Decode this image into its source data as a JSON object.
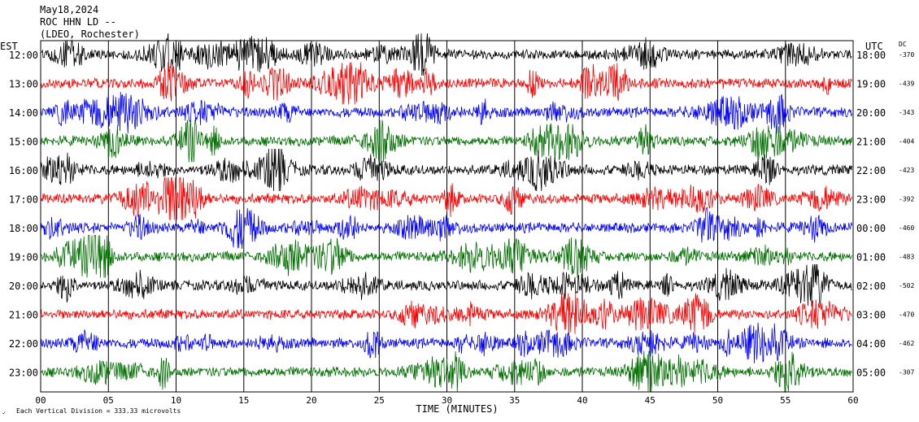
{
  "header": {
    "line1": "May18,2024",
    "line2": "ROC HHN LD --",
    "line3": "(LDEO, Rochester)"
  },
  "left_axis_title": "EST",
  "right_axis_title": "UTC",
  "dc_title": "DC",
  "footer": {
    "scale_note": "Each Vertical Division =  333.33 microvolts"
  },
  "chart_data": {
    "type": "line",
    "title": "",
    "xlabel": "TIME (MINUTES)",
    "ylabel": "",
    "xlim": [
      0,
      60
    ],
    "x_ticks": [
      "00",
      "05",
      "10",
      "15",
      "20",
      "25",
      "30",
      "35",
      "40",
      "45",
      "50",
      "55",
      "60"
    ],
    "vertical_gridlines_every_minutes": 5,
    "trace_colors": [
      "#000000",
      "#ff0000",
      "#0000ff",
      "#007000"
    ],
    "rows": [
      {
        "est": "12:00",
        "utc": "18:00",
        "dc": "-370"
      },
      {
        "est": "13:00",
        "utc": "19:00",
        "dc": "-439"
      },
      {
        "est": "14:00",
        "utc": "20:00",
        "dc": "-343"
      },
      {
        "est": "15:00",
        "utc": "21:00",
        "dc": "-404"
      },
      {
        "est": "16:00",
        "utc": "22:00",
        "dc": "-423"
      },
      {
        "est": "17:00",
        "utc": "23:00",
        "dc": "-392"
      },
      {
        "est": "18:00",
        "utc": "00:00",
        "dc": "-460"
      },
      {
        "est": "19:00",
        "utc": "01:00",
        "dc": "-483"
      },
      {
        "est": "20:00",
        "utc": "02:00",
        "dc": "-502"
      },
      {
        "est": "21:00",
        "utc": "03:00",
        "dc": "-470"
      },
      {
        "est": "22:00",
        "utc": "04:00",
        "dc": "-462"
      },
      {
        "est": "23:00",
        "utc": "05:00",
        "dc": "-307"
      }
    ]
  }
}
